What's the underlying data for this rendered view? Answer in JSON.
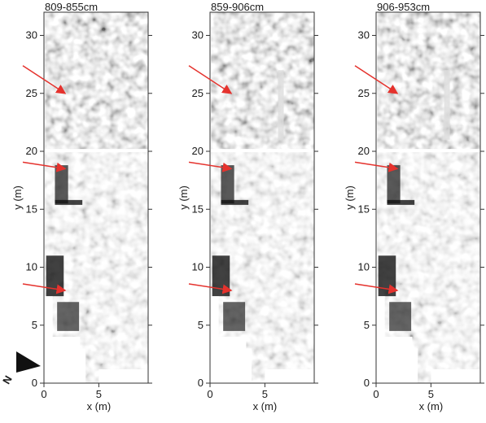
{
  "figure": {
    "x_axis_label": "x (m)",
    "y_axis_label": "y (m)",
    "x_ticks": [
      "0",
      "5"
    ],
    "y_ticks": [
      "0",
      "5",
      "10",
      "15",
      "20",
      "25",
      "30"
    ],
    "x_range_m": [
      0,
      9.5
    ],
    "y_range_m": [
      0,
      32
    ],
    "north_symbol": "north-arrow",
    "colors": {
      "arrow": "#e5322d",
      "frame": "#333333"
    },
    "panels": [
      {
        "title": "809-855cm",
        "arrow_targets_y_m": [
          25,
          18.5,
          8
        ]
      },
      {
        "title": "859-906cm",
        "arrow_targets_y_m": [
          25,
          18.5,
          8
        ]
      },
      {
        "title": "906-953cm",
        "arrow_targets_y_m": [
          25,
          18.5,
          8
        ]
      }
    ]
  }
}
